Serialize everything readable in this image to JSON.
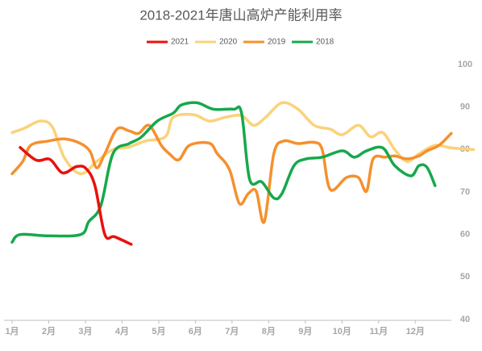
{
  "chart_data": {
    "type": "line",
    "title": "2018-2021年唐山高炉产能利用率",
    "xlim": [
      1,
      13.6
    ],
    "xticks": [
      {
        "value": 1,
        "label": "1月"
      },
      {
        "value": 2,
        "label": "2月"
      },
      {
        "value": 3,
        "label": "3月"
      },
      {
        "value": 4,
        "label": "4月"
      },
      {
        "value": 5,
        "label": "5月"
      },
      {
        "value": 6,
        "label": "6月"
      },
      {
        "value": 7,
        "label": "7月"
      },
      {
        "value": 8,
        "label": "8月"
      },
      {
        "value": 9,
        "label": "9月"
      },
      {
        "value": 10,
        "label": "10月"
      },
      {
        "value": 11,
        "label": "11月"
      },
      {
        "value": 12,
        "label": "12月"
      }
    ],
    "ylim": [
      40,
      100
    ],
    "yticks": [
      40,
      50,
      60,
      70,
      80,
      90,
      100
    ],
    "y_axis_side": "right",
    "grid": false,
    "legend_position": "top",
    "series": [
      {
        "name": "2021",
        "color": "#e8120c",
        "x": [
          1.22,
          1.66,
          2.03,
          2.38,
          2.76,
          3.02,
          3.26,
          3.53,
          3.79,
          4.25
        ],
        "values": [
          80.5,
          77.5,
          77.7,
          74.5,
          76,
          75.5,
          71.5,
          60,
          59.5,
          57.7
        ]
      },
      {
        "name": "2020",
        "color": "#fbd27a",
        "x": [
          1,
          1.33,
          1.77,
          2.1,
          2.43,
          2.87,
          3.31,
          3.75,
          4.19,
          4.63,
          5.18,
          5.4,
          5.95,
          6.38,
          6.82,
          7.26,
          7.59,
          7.92,
          8.36,
          8.8,
          9.24,
          9.68,
          10.01,
          10.45,
          10.78,
          11.11,
          11.44,
          11.77,
          12.1,
          12.54,
          12.98,
          13.59
        ],
        "values": [
          84,
          85,
          86.7,
          85.3,
          78,
          74.3,
          77.2,
          80,
          80.6,
          82,
          83,
          87.6,
          88.2,
          86.7,
          87.6,
          88,
          85.7,
          87.6,
          91,
          89.5,
          85.7,
          84.8,
          83.5,
          85.7,
          83,
          84,
          80,
          77.2,
          79,
          81,
          80.4,
          80
        ]
      },
      {
        "name": "2019",
        "color": "#f5902e",
        "x": [
          1,
          1.29,
          1.51,
          1.99,
          2.43,
          2.87,
          3.13,
          3.31,
          3.53,
          3.86,
          4.19,
          4.45,
          4.74,
          5.07,
          5.29,
          5.55,
          5.84,
          6.38,
          6.6,
          6.93,
          7.2,
          7.44,
          7.66,
          7.88,
          8.14,
          8.41,
          8.8,
          9.24,
          9.46,
          9.68,
          10.12,
          10.45,
          10.67,
          10.85,
          11.18,
          11.44,
          11.77,
          12.1,
          12.32,
          12.65,
          12.98
        ],
        "values": [
          74.3,
          77.2,
          81,
          82,
          82.5,
          81.4,
          79.5,
          75.7,
          79,
          84.8,
          84.4,
          83.8,
          85.7,
          81,
          79,
          77.6,
          81,
          81.5,
          79,
          75.3,
          67.3,
          69.6,
          70.2,
          63,
          79,
          82,
          81.4,
          81.7,
          80,
          70.6,
          73.4,
          73.4,
          70.2,
          77.8,
          78.2,
          78.5,
          77.8,
          78.5,
          79.7,
          81,
          83.8
        ]
      },
      {
        "name": "2018",
        "color": "#17a84b",
        "x": [
          1,
          1.22,
          1.99,
          2.87,
          3.09,
          3.42,
          3.75,
          4.19,
          4.52,
          4.96,
          5.4,
          5.62,
          6.05,
          6.49,
          7.04,
          7.26,
          7.48,
          7.81,
          8.14,
          8.36,
          8.69,
          9.02,
          9.46,
          10.01,
          10.34,
          10.67,
          11.11,
          11.44,
          11.88,
          12.1,
          12.32,
          12.54
        ],
        "values": [
          58.2,
          60,
          59.7,
          60,
          63,
          66.8,
          79,
          81.4,
          82.9,
          86.7,
          88.6,
          90.5,
          91,
          89.5,
          89.5,
          88.6,
          73,
          72.4,
          68.6,
          69.6,
          76.2,
          77.8,
          78.2,
          79.7,
          78.2,
          79.7,
          80.4,
          76.2,
          73.8,
          76.2,
          75.8,
          71.5
        ]
      }
    ]
  }
}
